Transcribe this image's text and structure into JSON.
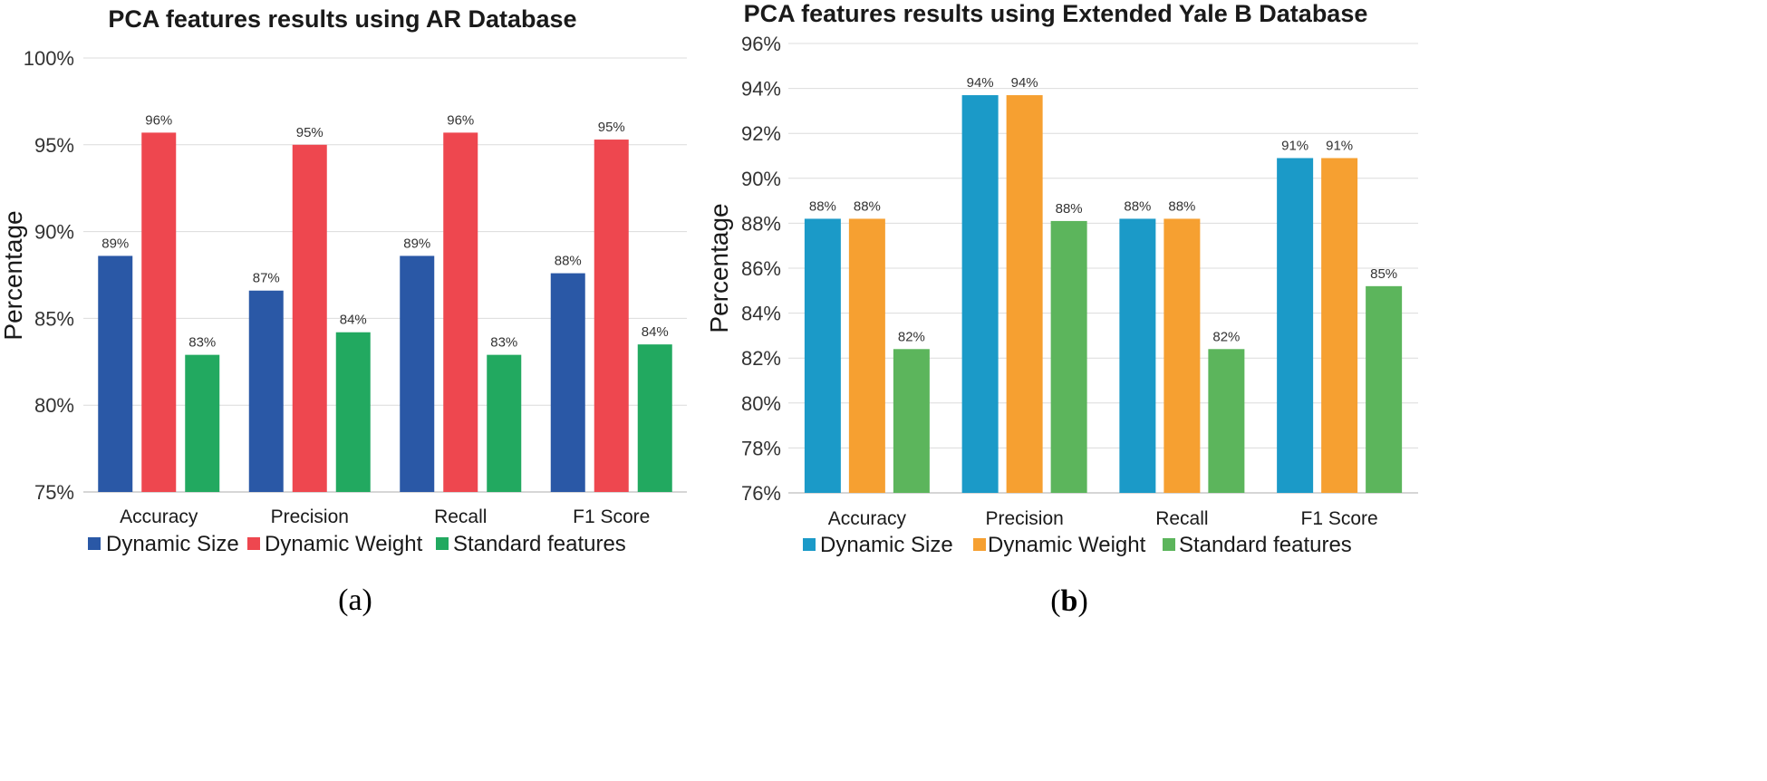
{
  "chart_data": [
    {
      "type": "bar",
      "title": "PCA features results using AR Database",
      "xlabel": "",
      "ylabel": "Percentage",
      "ylim": [
        75,
        100
      ],
      "yticks": [
        "75%",
        "80%",
        "85%",
        "90%",
        "95%",
        "100%"
      ],
      "categories": [
        "Accuracy",
        "Precision",
        "Recall",
        "F1 Score"
      ],
      "series": [
        {
          "name": "Dynamic Size",
          "color": "#2A58A6",
          "values": [
            88.6,
            86.6,
            88.6,
            87.6
          ],
          "labels": [
            "89%",
            "87%",
            "89%",
            "88%"
          ]
        },
        {
          "name": "Dynamic Weight",
          "color": "#EE474F",
          "values": [
            95.7,
            95.0,
            95.7,
            95.3
          ],
          "labels": [
            "96%",
            "95%",
            "96%",
            "95%"
          ]
        },
        {
          "name": "Standard features",
          "color": "#22A960",
          "values": [
            82.9,
            84.2,
            82.9,
            83.5
          ],
          "labels": [
            "83%",
            "84%",
            "83%",
            "84%"
          ]
        }
      ],
      "legend": "bottom",
      "grid": true,
      "panel_label": "a"
    },
    {
      "type": "bar",
      "title": "PCA features results using Extended Yale B Database",
      "xlabel": "",
      "ylabel": "Percentage",
      "ylim": [
        76,
        96
      ],
      "yticks": [
        "76%",
        "78%",
        "80%",
        "82%",
        "84%",
        "86%",
        "88%",
        "90%",
        "92%",
        "94%",
        "96%"
      ],
      "categories": [
        "Accuracy",
        "Precision",
        "Recall",
        "F1 Score"
      ],
      "series": [
        {
          "name": "Dynamic Size",
          "color": "#1B9AC8",
          "values": [
            88.2,
            93.7,
            88.2,
            90.9
          ],
          "labels": [
            "88%",
            "94%",
            "88%",
            "91%"
          ]
        },
        {
          "name": "Dynamic Weight",
          "color": "#F6A031",
          "values": [
            88.2,
            93.7,
            88.2,
            90.9
          ],
          "labels": [
            "88%",
            "94%",
            "88%",
            "91%"
          ]
        },
        {
          "name": "Standard features",
          "color": "#5CB55C",
          "values": [
            82.4,
            88.1,
            82.4,
            85.2
          ],
          "labels": [
            "82%",
            "88%",
            "82%",
            "85%"
          ]
        }
      ],
      "legend": "bottom",
      "grid": true,
      "panel_label": "b"
    }
  ]
}
